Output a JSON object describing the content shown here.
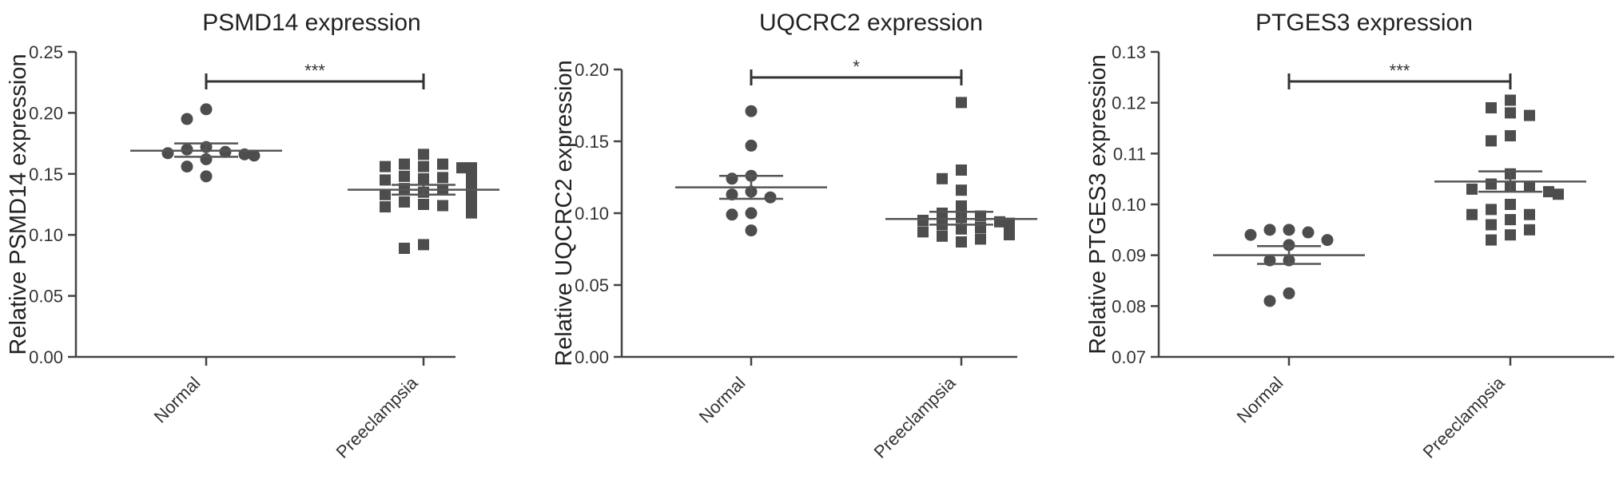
{
  "chart_data": [
    {
      "type": "scatter",
      "title": "PSMD14 expression",
      "ylabel": "Relative PSMD14 expression",
      "xlabel": "",
      "categories": [
        "Normal",
        "Preeclampsia"
      ],
      "ylim": [
        0,
        0.25
      ],
      "yticks": [
        "0.00",
        "0.05",
        "0.10",
        "0.15",
        "0.20",
        "0.25"
      ],
      "significance": "***",
      "series": [
        {
          "marker": "circle",
          "values": [
            0.203,
            0.195,
            0.172,
            0.17,
            0.168,
            0.167,
            0.166,
            0.165,
            0.162,
            0.156,
            0.148
          ],
          "mean": 0.169,
          "sem_upper": 0.175,
          "sem_lower": 0.164
        },
        {
          "marker": "square",
          "values": [
            0.166,
            0.158,
            0.158,
            0.156,
            0.156,
            0.155,
            0.155,
            0.153,
            0.15,
            0.148,
            0.147,
            0.146,
            0.145,
            0.144,
            0.142,
            0.14,
            0.139,
            0.138,
            0.137,
            0.135,
            0.133,
            0.132,
            0.13,
            0.129,
            0.127,
            0.125,
            0.124,
            0.123,
            0.121,
            0.118,
            0.092,
            0.089
          ],
          "mean": 0.137,
          "sem_upper": 0.141,
          "sem_lower": 0.133
        }
      ]
    },
    {
      "type": "scatter",
      "title": "UQCRC2 expression",
      "ylabel": "Relative UQCRC2 expression",
      "xlabel": "",
      "categories": [
        "Normal",
        "Preeclampsia"
      ],
      "ylim": [
        0,
        0.2
      ],
      "yticks": [
        "0.00",
        "0.05",
        "0.10",
        "0.15",
        "0.20"
      ],
      "significance": "*",
      "series": [
        {
          "marker": "circle",
          "values": [
            0.171,
            0.147,
            0.126,
            0.124,
            0.115,
            0.113,
            0.111,
            0.1,
            0.099,
            0.088
          ],
          "mean": 0.118,
          "sem_upper": 0.126,
          "sem_lower": 0.11
        },
        {
          "marker": "square",
          "values": [
            0.177,
            0.13,
            0.124,
            0.116,
            0.105,
            0.1,
            0.098,
            0.097,
            0.095,
            0.094,
            0.093,
            0.092,
            0.091,
            0.09,
            0.089,
            0.088,
            0.087,
            0.086,
            0.085,
            0.084,
            0.082,
            0.08
          ],
          "mean": 0.096,
          "sem_upper": 0.101,
          "sem_lower": 0.092
        }
      ]
    },
    {
      "type": "scatter",
      "title": "PTGES3 expression",
      "ylabel": "Relative PTGES3 expression",
      "xlabel": "",
      "categories": [
        "Normal",
        "Preeclampsia"
      ],
      "ylim": [
        0.07,
        0.13
      ],
      "yticks": [
        "0.07",
        "0.08",
        "0.09",
        "0.10",
        "0.11",
        "0.12",
        "0.13"
      ],
      "significance": "***",
      "series": [
        {
          "marker": "circle",
          "values": [
            0.095,
            0.095,
            0.0945,
            0.094,
            0.093,
            0.092,
            0.089,
            0.089,
            0.0825,
            0.081
          ],
          "mean": 0.09,
          "sem_upper": 0.0918,
          "sem_lower": 0.0883
        },
        {
          "marker": "square",
          "values": [
            0.1205,
            0.119,
            0.118,
            0.1175,
            0.1135,
            0.1125,
            0.106,
            0.104,
            0.1035,
            0.1035,
            0.103,
            0.1025,
            0.102,
            0.1,
            0.099,
            0.098,
            0.098,
            0.097,
            0.096,
            0.095,
            0.094,
            0.093
          ],
          "mean": 0.1045,
          "sem_upper": 0.1065,
          "sem_lower": 0.1025
        }
      ]
    }
  ]
}
